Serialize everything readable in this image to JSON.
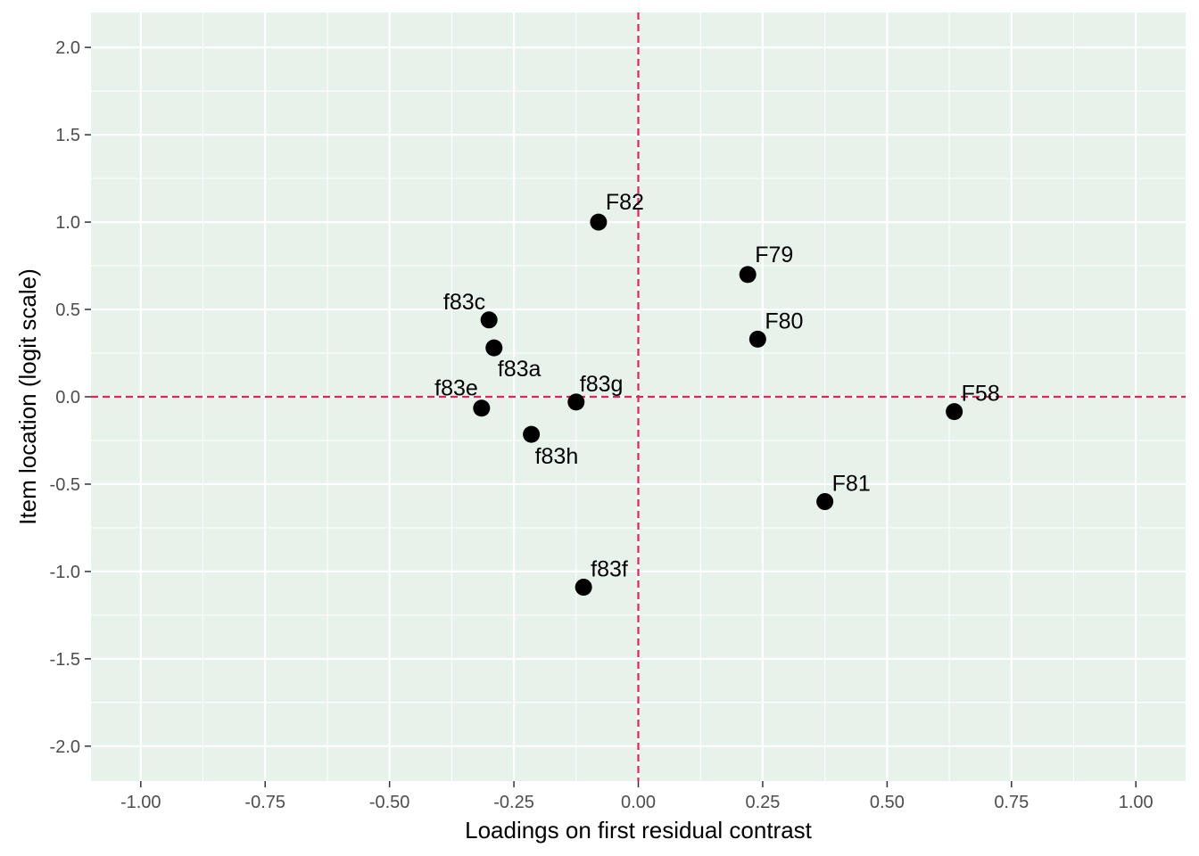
{
  "chart_data": {
    "type": "scatter",
    "title": "",
    "xlabel": "Loadings on first residual contrast",
    "ylabel": "Item location (logit scale)",
    "xlim": [
      -1.1,
      1.1
    ],
    "ylim": [
      -2.2,
      2.2
    ],
    "x_ticks": [
      -1.0,
      -0.75,
      -0.5,
      -0.25,
      0.0,
      0.25,
      0.5,
      0.75,
      1.0
    ],
    "x_tick_labels": [
      "-1.00",
      "-0.75",
      "-0.50",
      "-0.25",
      "0.00",
      "0.25",
      "0.50",
      "0.75",
      "1.00"
    ],
    "y_ticks": [
      -2.0,
      -1.5,
      -1.0,
      -0.5,
      0.0,
      0.5,
      1.0,
      1.5,
      2.0
    ],
    "y_tick_labels": [
      "-2.0",
      "-1.5",
      "-1.0",
      "-0.5",
      "0.0",
      "0.5",
      "1.0",
      "1.5",
      "2.0"
    ],
    "grid": true,
    "reference_lines": {
      "x": 0,
      "y": 0,
      "color": "#e0245e",
      "style": "dashed"
    },
    "colors": {
      "panel_background": "#e6f2ea",
      "grid": "#ffffff",
      "point": "#000000"
    },
    "points": [
      {
        "label": "F82",
        "x": -0.08,
        "y": 1.0
      },
      {
        "label": "F79",
        "x": 0.22,
        "y": 0.7
      },
      {
        "label": "f83c",
        "x": -0.3,
        "y": 0.44
      },
      {
        "label": "f83a",
        "x": -0.29,
        "y": 0.28
      },
      {
        "label": "F80",
        "x": 0.24,
        "y": 0.33
      },
      {
        "label": "f83e",
        "x": -0.315,
        "y": -0.065
      },
      {
        "label": "f83g",
        "x": -0.125,
        "y": -0.03
      },
      {
        "label": "f83h",
        "x": -0.215,
        "y": -0.215
      },
      {
        "label": "F58",
        "x": 0.635,
        "y": -0.085
      },
      {
        "label": "F81",
        "x": 0.375,
        "y": -0.6
      },
      {
        "label": "f83f",
        "x": -0.11,
        "y": -1.09
      }
    ]
  }
}
